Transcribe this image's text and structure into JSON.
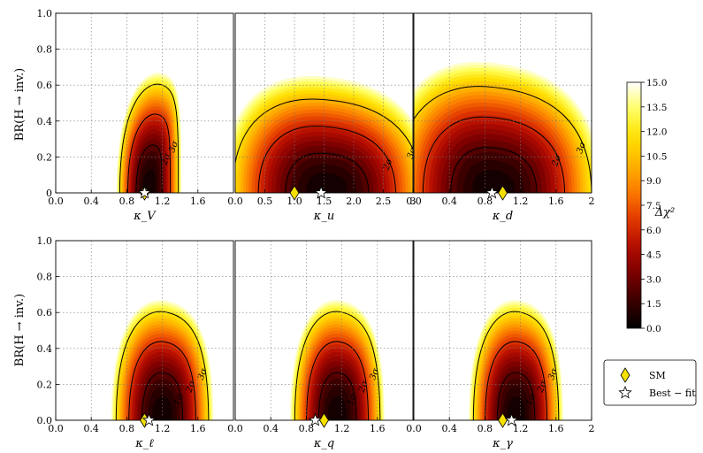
{
  "colors": {
    "colormap": [
      "#000000",
      "#3a0000",
      "#7a0000",
      "#b30c00",
      "#e23a00",
      "#fb7a00",
      "#ffb400",
      "#ffe000",
      "#ffff60",
      "#ffffff"
    ],
    "sm_marker": "#f5e000",
    "bestfit_marker": "#ffffff",
    "contour": "#000000",
    "grid": "#777777"
  },
  "colorbar": {
    "label": "Δχ²",
    "min": 0.0,
    "max": 15.0,
    "ticks": [
      "0.0",
      "1.5",
      "3.0",
      "4.5",
      "6.0",
      "7.5",
      "9.0",
      "10.5",
      "12.0",
      "13.5",
      "15.0"
    ]
  },
  "legend": {
    "sm_label": "SM",
    "bestfit_label": "Best − fit",
    "sm_icon": "yellow-diamond-icon",
    "bestfit_icon": "white-star-icon"
  },
  "ylabel": "BR(H → inv.)",
  "contour_labels": [
    "1σ",
    "2σ",
    "3σ"
  ],
  "chart_data": [
    {
      "type": "heatmap",
      "xlabel": "κ_V",
      "xlim": [
        0.0,
        2.0
      ],
      "xticks": [
        "0.0",
        "0.4",
        "0.8",
        "1.2",
        "1.6"
      ],
      "ylim": [
        0.0,
        1.0
      ],
      "yticks": [
        "0",
        "0.2",
        "0.4",
        "0.6",
        "0.8",
        "1.0"
      ],
      "sm": [
        1.0,
        0.0
      ],
      "best_fit": [
        1.0,
        0.0
      ],
      "contour_labels_shown": [
        "2σ",
        "3σ"
      ],
      "region": {
        "center_x": 1.05,
        "half_width_base": 0.33,
        "extent_3sigma": 0.6,
        "tilt": 0.25,
        "tail": 0
      }
    },
    {
      "type": "heatmap",
      "xlabel": "κ_u",
      "xlim": [
        0.0,
        3.0
      ],
      "xticks": [
        "0.0",
        "0.5",
        "1.0",
        "1.5",
        "2.0",
        "2.5",
        "3"
      ],
      "ylim": [
        0.0,
        1.0
      ],
      "yticks": [
        "0",
        "0.2",
        "0.4",
        "0.6",
        "0.8",
        "1.0"
      ],
      "sm": [
        1.0,
        0.0
      ],
      "best_fit": [
        1.45,
        0.0
      ],
      "contour_labels_shown": [
        "2σ",
        "3σ"
      ],
      "region": {
        "center_x": 1.55,
        "half_width_base": 1.6,
        "extent_3sigma": 0.48,
        "tilt": 0.0,
        "tail": 0.12
      }
    },
    {
      "type": "heatmap",
      "xlabel": "κ_d",
      "xlim": [
        0.0,
        2.0
      ],
      "xticks": [
        "0.0",
        "0.4",
        "0.8",
        "1.2",
        "1.6",
        "2"
      ],
      "ylim": [
        0.0,
        1.0
      ],
      "yticks": [
        "0",
        "0.2",
        "0.4",
        "0.6",
        "0.8",
        "1.0"
      ],
      "sm": [
        1.0,
        0.0
      ],
      "best_fit": [
        0.88,
        0.0
      ],
      "contour_labels_shown": [
        "2σ",
        "3σ"
      ],
      "region": {
        "center_x": 0.9,
        "half_width_base": 1.1,
        "extent_3sigma": 0.55,
        "tilt": 0.0,
        "tail": 0.12
      }
    },
    {
      "type": "heatmap",
      "xlabel": "κ_ℓ",
      "xlim": [
        0.0,
        2.0
      ],
      "xticks": [
        "0.0",
        "0.4",
        "0.8",
        "1.2",
        "1.6"
      ],
      "ylim": [
        0.0,
        1.0
      ],
      "yticks": [
        "0.0",
        "0.2",
        "0.4",
        "0.6",
        "0.8",
        "1.0"
      ],
      "sm": [
        1.0,
        0.0
      ],
      "best_fit": [
        1.05,
        0.0
      ],
      "contour_labels_shown": [
        "1σ",
        "2σ",
        "3σ"
      ],
      "region": {
        "center_x": 1.2,
        "half_width_base": 0.52,
        "extent_3sigma": 0.6,
        "tilt": 0.1,
        "tail": 0
      }
    },
    {
      "type": "heatmap",
      "xlabel": "κ_q",
      "xlim": [
        0.0,
        2.0
      ],
      "xticks": [
        "0.0",
        "0.4",
        "0.8",
        "1.2",
        "1.6"
      ],
      "ylim": [
        0.0,
        1.0
      ],
      "yticks": [
        "0.0",
        "0.2",
        "0.4",
        "0.6",
        "0.8",
        "1.0"
      ],
      "sm": [
        1.0,
        0.0
      ],
      "best_fit": [
        0.9,
        0.0
      ],
      "contour_labels_shown": [
        "1σ",
        "2σ",
        "3σ"
      ],
      "region": {
        "center_x": 1.15,
        "half_width_base": 0.48,
        "extent_3sigma": 0.6,
        "tilt": 0.1,
        "tail": 0
      }
    },
    {
      "type": "heatmap",
      "xlabel": "κ_γ",
      "xlim": [
        0.0,
        2.0
      ],
      "xticks": [
        "0.0",
        "0.4",
        "0.8",
        "1.2",
        "1.6",
        "2"
      ],
      "ylim": [
        0.0,
        1.0
      ],
      "yticks": [
        "0.0",
        "0.2",
        "0.4",
        "0.6",
        "0.8",
        "1.0"
      ],
      "sm": [
        1.0,
        0.0
      ],
      "best_fit": [
        1.1,
        0.0
      ],
      "contour_labels_shown": [
        "1σ",
        "2σ",
        "3σ"
      ],
      "region": {
        "center_x": 1.15,
        "half_width_base": 0.48,
        "extent_3sigma": 0.6,
        "tilt": 0.1,
        "tail": 0
      }
    }
  ]
}
